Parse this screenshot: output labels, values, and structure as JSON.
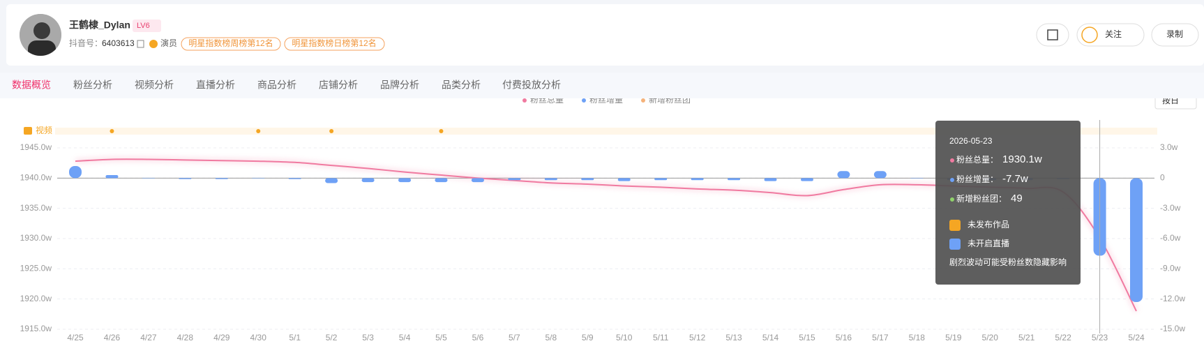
{
  "header": {
    "name": "王鹤棣_Dylan",
    "level": "LV6",
    "id_label": "抖音号：",
    "id": "6403613",
    "role": "演员",
    "tags": [
      "明星指数榜周榜第12名",
      "明星指数榜日榜第12名"
    ],
    "follow": "关注",
    "record": "录制"
  },
  "tabs": [
    "数据概览",
    "粉丝分析",
    "视频分析",
    "直播分析",
    "商品分析",
    "店铺分析",
    "品牌分析",
    "品类分析",
    "付费投放分析"
  ],
  "active_tab": 0,
  "granularity": "按日",
  "chart_data": {
    "type": "bar-line",
    "categories": [
      "4/25",
      "4/26",
      "4/27",
      "4/28",
      "4/29",
      "4/30",
      "5/1",
      "5/2",
      "5/3",
      "5/4",
      "5/5",
      "5/6",
      "5/7",
      "5/8",
      "5/9",
      "5/10",
      "5/11",
      "5/12",
      "5/13",
      "5/14",
      "5/15",
      "5/16",
      "5/17",
      "5/18",
      "5/19",
      "5/20",
      "5/21",
      "5/22",
      "5/23",
      "5/24"
    ],
    "series": [
      {
        "name": "粉丝总量",
        "color": "#f07aa0",
        "type": "line",
        "values": [
          1942.8,
          1943.1,
          1943.1,
          1943.0,
          1942.9,
          1942.8,
          1942.6,
          1942.1,
          1941.6,
          1941.0,
          1940.5,
          1940.0,
          1939.6,
          1939.2,
          1939.0,
          1938.7,
          1938.5,
          1938.2,
          1938.0,
          1937.6,
          1937.1,
          1938.1,
          1938.9,
          1938.9,
          1938.7,
          1938.5,
          1938.3,
          1937.7,
          1930.1,
          1918.0
        ]
      },
      {
        "name": "粉丝增量",
        "color": "#6ea1f6",
        "type": "bar",
        "axis": "y2",
        "values": [
          1.2,
          0.3,
          0,
          -0.1,
          -0.1,
          0,
          -0.1,
          -0.5,
          -0.4,
          -0.4,
          -0.4,
          -0.4,
          -0.2,
          -0.2,
          -0.2,
          -0.3,
          -0.2,
          -0.2,
          -0.2,
          -0.3,
          -0.3,
          0.7,
          0.7,
          0,
          -0.2,
          -0.2,
          -0.2,
          -0.1,
          -7.7,
          -12.3
        ]
      },
      {
        "name": "新增粉丝团",
        "color": "#f5b27a"
      }
    ],
    "ylim": [
      1915,
      1945
    ],
    "yticks": [
      {
        "value": 1915,
        "label": "1915.0w"
      },
      {
        "value": 1920,
        "label": "1920.0w"
      },
      {
        "value": 1925,
        "label": "1925.0w"
      },
      {
        "value": 1930,
        "label": "1930.0w"
      },
      {
        "value": 1935,
        "label": "1935.0w"
      },
      {
        "value": 1940,
        "label": "1940.0w"
      },
      {
        "value": 1945,
        "label": "1945.0w"
      }
    ],
    "y2lim": [
      -15,
      3
    ],
    "y2ticks": [
      {
        "value": -15,
        "label": "-15.0w"
      },
      {
        "value": -12,
        "label": "-12.0w"
      },
      {
        "value": -9,
        "label": "-9.0w"
      },
      {
        "value": -6,
        "label": "-6.0w"
      },
      {
        "value": -3,
        "label": "-3.0w"
      },
      0,
      {
        "value": 3,
        "label": "3.0w"
      }
    ],
    "grid": true,
    "video_label": "视频",
    "video_posts": [
      "4/26",
      "4/30",
      "5/2",
      "5/5"
    ],
    "tooltip": {
      "date": "2026-05-23",
      "category": "5/23",
      "rows": [
        {
          "label": "粉丝总量：",
          "value": "1930.1w"
        },
        {
          "label": "粉丝增量：",
          "value": "-7.7w"
        },
        {
          "label": "新增粉丝团：",
          "value": "49"
        }
      ],
      "notes": [
        "未发布作品",
        "未开启直播"
      ],
      "warning": "剧烈波动可能受粉丝数隐藏影响"
    }
  }
}
